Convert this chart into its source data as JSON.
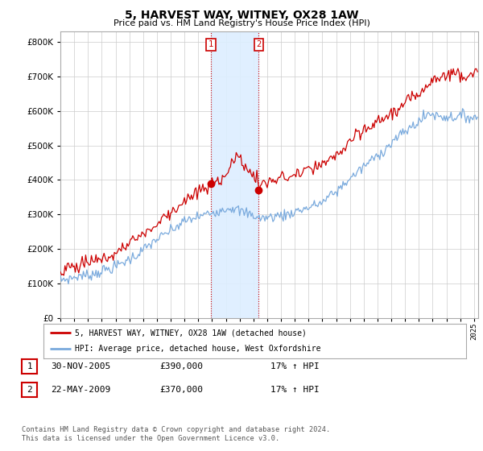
{
  "title": "5, HARVEST WAY, WITNEY, OX28 1AW",
  "subtitle": "Price paid vs. HM Land Registry's House Price Index (HPI)",
  "legend_line1": "5, HARVEST WAY, WITNEY, OX28 1AW (detached house)",
  "legend_line2": "HPI: Average price, detached house, West Oxfordshire",
  "table_rows": [
    {
      "num": "1",
      "date": "30-NOV-2005",
      "price": "£390,000",
      "hpi": "17% ↑ HPI"
    },
    {
      "num": "2",
      "date": "22-MAY-2009",
      "price": "£370,000",
      "hpi": "17% ↑ HPI"
    }
  ],
  "footer": "Contains HM Land Registry data © Crown copyright and database right 2024.\nThis data is licensed under the Open Government Licence v3.0.",
  "sale1_date": 2005.917,
  "sale1_price": 390000,
  "sale2_date": 2009.38,
  "sale2_price": 370000,
  "ylim_min": 0,
  "ylim_max": 830000,
  "xlim_min": 1995.0,
  "xlim_max": 2025.3,
  "red_color": "#cc0000",
  "blue_color": "#7aaadd",
  "background_color": "#ffffff",
  "plot_bg_color": "#ffffff",
  "grid_color": "#cccccc",
  "vline_color": "#cc0000",
  "span_color": "#ddeeff"
}
